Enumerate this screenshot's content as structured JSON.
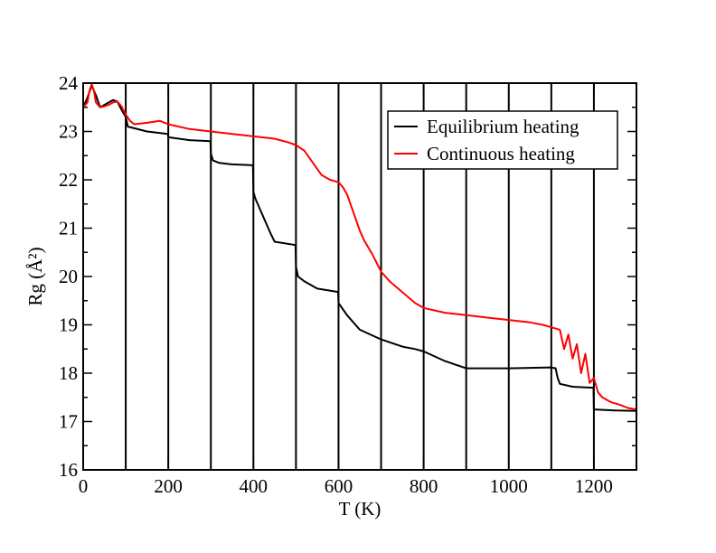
{
  "chart_data": {
    "type": "line",
    "xlabel": "T (K)",
    "ylabel": "Rg (Å²)",
    "xlim": [
      0,
      1300
    ],
    "ylim": [
      16,
      24
    ],
    "x_ticks": [
      0,
      200,
      400,
      600,
      800,
      1000,
      1200
    ],
    "y_ticks": [
      16,
      17,
      18,
      19,
      20,
      21,
      22,
      23,
      24
    ],
    "vertical_reference_lines": [
      100,
      200,
      300,
      400,
      500,
      600,
      700,
      800,
      900,
      1000,
      1100,
      1200
    ],
    "legend_position": "top-right",
    "series": [
      {
        "name": "Equilibrium heating",
        "color": "#000000",
        "x": [
          0,
          10,
          20,
          30,
          40,
          50,
          60,
          70,
          80,
          90,
          100,
          105,
          150,
          199,
          200,
          250,
          299,
          300,
          305,
          320,
          350,
          399,
          400,
          405,
          420,
          440,
          450,
          499,
          500,
          505,
          520,
          550,
          599,
          600,
          620,
          650,
          700,
          750,
          780,
          800,
          850,
          900,
          1000,
          1100,
          1110,
          1115,
          1120,
          1150,
          1199,
          1200,
          1250,
          1300
        ],
        "y": [
          23.5,
          23.7,
          23.95,
          23.75,
          23.5,
          23.55,
          23.6,
          23.65,
          23.62,
          23.45,
          23.3,
          23.1,
          23.0,
          22.95,
          22.88,
          22.82,
          22.8,
          22.55,
          22.4,
          22.35,
          22.32,
          22.3,
          21.75,
          21.6,
          21.3,
          20.9,
          20.72,
          20.65,
          20.2,
          20.0,
          19.9,
          19.75,
          19.68,
          19.45,
          19.2,
          18.9,
          18.7,
          18.55,
          18.5,
          18.45,
          18.25,
          18.1,
          18.1,
          18.12,
          18.1,
          17.9,
          17.78,
          17.72,
          17.7,
          17.25,
          17.23,
          17.22
        ]
      },
      {
        "name": "Continuous heating",
        "color": "#ff0000",
        "x": [
          0,
          10,
          15,
          20,
          25,
          30,
          40,
          50,
          60,
          70,
          80,
          90,
          100,
          110,
          120,
          150,
          180,
          200,
          250,
          300,
          350,
          400,
          450,
          480,
          500,
          520,
          540,
          560,
          580,
          600,
          610,
          620,
          630,
          640,
          650,
          660,
          680,
          700,
          720,
          740,
          760,
          780,
          800,
          850,
          900,
          950,
          1000,
          1050,
          1080,
          1100,
          1120,
          1130,
          1140,
          1150,
          1160,
          1170,
          1180,
          1190,
          1200,
          1210,
          1220,
          1240,
          1260,
          1280,
          1300
        ],
        "y": [
          23.5,
          23.6,
          23.85,
          23.98,
          23.85,
          23.6,
          23.5,
          23.52,
          23.55,
          23.6,
          23.62,
          23.52,
          23.35,
          23.22,
          23.15,
          23.18,
          23.22,
          23.15,
          23.05,
          23.0,
          22.95,
          22.9,
          22.85,
          22.78,
          22.72,
          22.6,
          22.35,
          22.1,
          22.0,
          21.95,
          21.85,
          21.7,
          21.45,
          21.2,
          20.95,
          20.75,
          20.45,
          20.1,
          19.9,
          19.75,
          19.6,
          19.45,
          19.35,
          19.25,
          19.2,
          19.15,
          19.1,
          19.05,
          19.0,
          18.95,
          18.9,
          18.5,
          18.8,
          18.3,
          18.6,
          18.0,
          18.4,
          17.8,
          17.9,
          17.6,
          17.5,
          17.4,
          17.35,
          17.28,
          17.25
        ]
      }
    ]
  }
}
